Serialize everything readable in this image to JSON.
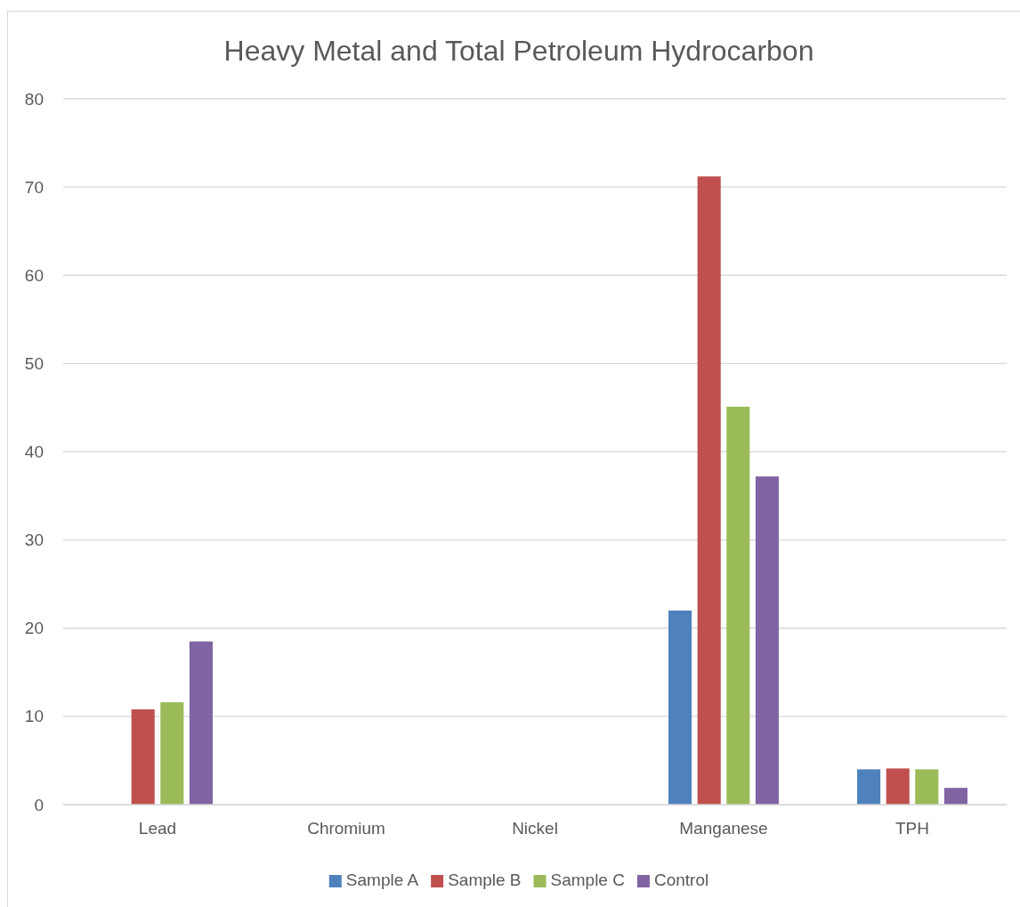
{
  "chart_data": {
    "type": "bar",
    "title": "Heavy Metal and Total Petroleum Hydrocarbon",
    "categories": [
      "Lead",
      "Chromium",
      "Nickel",
      "Manganese",
      "TPH"
    ],
    "series": [
      {
        "name": "Sample A",
        "color": "#4f81bd",
        "values": [
          0,
          0,
          0,
          22.0,
          4.0
        ]
      },
      {
        "name": "Sample B",
        "color": "#c0504d",
        "values": [
          10.8,
          0,
          0,
          71.2,
          4.1
        ]
      },
      {
        "name": "Sample C",
        "color": "#9bbb59",
        "values": [
          11.6,
          0,
          0,
          45.1,
          4.0
        ]
      },
      {
        "name": "Control",
        "color": "#8064a2",
        "values": [
          18.5,
          0,
          0,
          37.2,
          1.9
        ]
      }
    ],
    "ylim": [
      0,
      80
    ],
    "yticks": [
      0,
      10,
      20,
      30,
      40,
      50,
      60,
      70,
      80
    ],
    "grid": "y",
    "legend": "bottom"
  }
}
